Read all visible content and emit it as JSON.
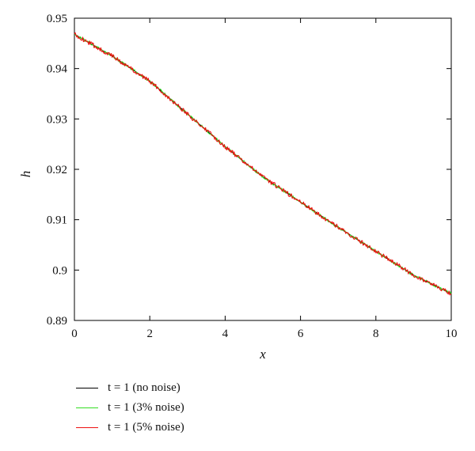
{
  "colors": {
    "black": "#000000",
    "green": "#33dd22",
    "red": "#ee1111"
  },
  "chart_data": {
    "type": "line",
    "xlabel": "x",
    "ylabel": "h",
    "xlim": [
      0,
      10
    ],
    "ylim": [
      0.89,
      0.95
    ],
    "xticks": [
      "0",
      "2",
      "4",
      "6",
      "8",
      "10"
    ],
    "yticks": [
      "0.89",
      "0.9",
      "0.91",
      "0.92",
      "0.93",
      "0.94",
      "0.95"
    ],
    "grid": false,
    "legend_placement": "below",
    "x": [
      0,
      1,
      2,
      3,
      4,
      5,
      6,
      7,
      8,
      9,
      10
    ],
    "series": [
      {
        "name": "t = 1 (no noise)",
        "color": "#000000",
        "noise": 0,
        "values": [
          0.9468,
          0.9425,
          0.9375,
          0.931,
          0.9245,
          0.9185,
          0.9135,
          0.9085,
          0.9037,
          0.899,
          0.8953
        ]
      },
      {
        "name": "t = 1 (3% noise)",
        "color": "#33dd22",
        "noise": 0.03,
        "values": [
          0.9468,
          0.9425,
          0.9375,
          0.931,
          0.9245,
          0.9185,
          0.9135,
          0.9085,
          0.9037,
          0.899,
          0.8953
        ]
      },
      {
        "name": "t = 1 (5% noise)",
        "color": "#ee1111",
        "noise": 0.05,
        "values": [
          0.9468,
          0.9425,
          0.9375,
          0.931,
          0.9245,
          0.9185,
          0.9135,
          0.9085,
          0.9037,
          0.899,
          0.8953
        ]
      }
    ]
  }
}
